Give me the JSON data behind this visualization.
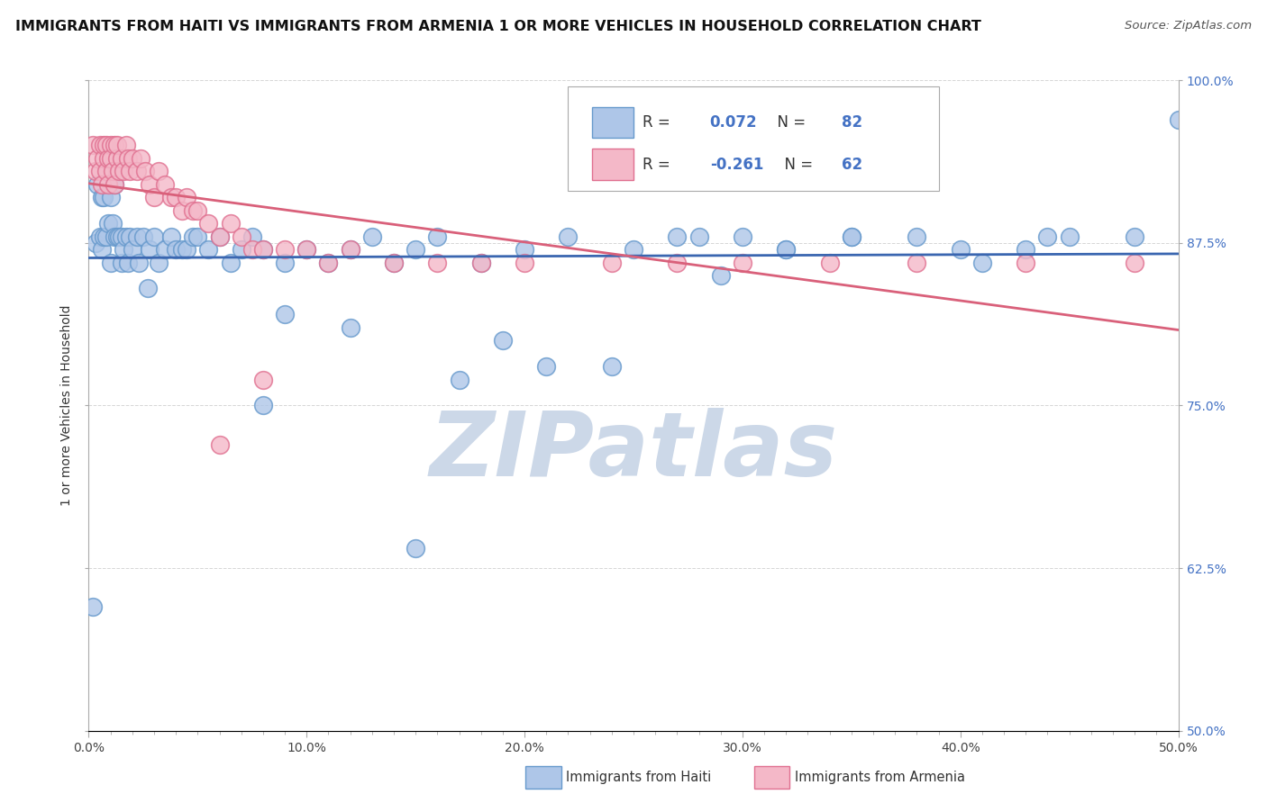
{
  "title": "IMMIGRANTS FROM HAITI VS IMMIGRANTS FROM ARMENIA 1 OR MORE VEHICLES IN HOUSEHOLD CORRELATION CHART",
  "source": "Source: ZipAtlas.com",
  "xlabel_ticks": [
    "0.0%",
    "",
    "",
    "",
    "",
    "",
    "",
    "",
    "",
    "",
    "10.0%",
    "",
    "",
    "",
    "",
    "",
    "",
    "",
    "",
    "",
    "20.0%",
    "",
    "",
    "",
    "",
    "",
    "",
    "",
    "",
    "",
    "30.0%",
    "",
    "",
    "",
    "",
    "",
    "",
    "",
    "",
    "",
    "40.0%",
    "",
    "",
    "",
    "",
    "",
    "",
    "",
    "",
    "",
    "50.0%"
  ],
  "ylabel": "1 or more Vehicles in Household",
  "ylabel_ticks": [
    "50.0%",
    "62.5%",
    "75.0%",
    "87.5%",
    "100.0%"
  ],
  "ylabel_vals": [
    0.5,
    0.625,
    0.75,
    0.875,
    1.0
  ],
  "xlim": [
    0.0,
    0.5
  ],
  "ylim": [
    0.5,
    1.0
  ],
  "haiti_color": "#aec6e8",
  "haiti_edge_color": "#6699cc",
  "armenia_color": "#f4b8c8",
  "armenia_edge_color": "#e07090",
  "haiti_R": 0.072,
  "haiti_N": 82,
  "armenia_R": -0.261,
  "armenia_N": 62,
  "haiti_line_color": "#3a66b0",
  "armenia_line_color": "#d9607a",
  "watermark": "ZIPatlas",
  "watermark_color": "#ccd8e8",
  "haiti_x": [
    0.002,
    0.003,
    0.004,
    0.005,
    0.006,
    0.006,
    0.007,
    0.007,
    0.008,
    0.009,
    0.009,
    0.01,
    0.01,
    0.011,
    0.012,
    0.012,
    0.013,
    0.013,
    0.014,
    0.015,
    0.015,
    0.016,
    0.017,
    0.018,
    0.019,
    0.02,
    0.022,
    0.023,
    0.025,
    0.027,
    0.028,
    0.03,
    0.032,
    0.035,
    0.038,
    0.04,
    0.043,
    0.045,
    0.048,
    0.05,
    0.055,
    0.06,
    0.065,
    0.07,
    0.075,
    0.08,
    0.09,
    0.1,
    0.11,
    0.12,
    0.13,
    0.14,
    0.15,
    0.16,
    0.18,
    0.2,
    0.22,
    0.25,
    0.27,
    0.3,
    0.32,
    0.35,
    0.38,
    0.4,
    0.43,
    0.45,
    0.48,
    0.5,
    0.21,
    0.17,
    0.08,
    0.09,
    0.12,
    0.28,
    0.35,
    0.41,
    0.24,
    0.19,
    0.29,
    0.32,
    0.15,
    0.44
  ],
  "haiti_y": [
    0.595,
    0.875,
    0.92,
    0.88,
    0.91,
    0.87,
    0.88,
    0.91,
    0.88,
    0.89,
    0.93,
    0.86,
    0.91,
    0.89,
    0.88,
    0.92,
    0.88,
    0.93,
    0.88,
    0.88,
    0.86,
    0.87,
    0.88,
    0.86,
    0.88,
    0.87,
    0.88,
    0.86,
    0.88,
    0.84,
    0.87,
    0.88,
    0.86,
    0.87,
    0.88,
    0.87,
    0.87,
    0.87,
    0.88,
    0.88,
    0.87,
    0.88,
    0.86,
    0.87,
    0.88,
    0.87,
    0.86,
    0.87,
    0.86,
    0.87,
    0.88,
    0.86,
    0.87,
    0.88,
    0.86,
    0.87,
    0.88,
    0.87,
    0.88,
    0.88,
    0.87,
    0.88,
    0.88,
    0.87,
    0.87,
    0.88,
    0.88,
    0.97,
    0.78,
    0.77,
    0.75,
    0.82,
    0.81,
    0.88,
    0.88,
    0.86,
    0.78,
    0.8,
    0.85,
    0.87,
    0.64,
    0.88
  ],
  "armenia_x": [
    0.002,
    0.003,
    0.004,
    0.005,
    0.005,
    0.006,
    0.007,
    0.007,
    0.008,
    0.008,
    0.009,
    0.009,
    0.01,
    0.01,
    0.011,
    0.012,
    0.012,
    0.013,
    0.013,
    0.014,
    0.015,
    0.016,
    0.017,
    0.018,
    0.019,
    0.02,
    0.022,
    0.024,
    0.026,
    0.028,
    0.03,
    0.032,
    0.035,
    0.038,
    0.04,
    0.043,
    0.045,
    0.048,
    0.05,
    0.055,
    0.06,
    0.065,
    0.07,
    0.075,
    0.08,
    0.09,
    0.1,
    0.11,
    0.12,
    0.14,
    0.16,
    0.18,
    0.2,
    0.24,
    0.27,
    0.3,
    0.34,
    0.38,
    0.43,
    0.48,
    0.06,
    0.08
  ],
  "armenia_y": [
    0.95,
    0.93,
    0.94,
    0.93,
    0.95,
    0.92,
    0.94,
    0.95,
    0.93,
    0.95,
    0.94,
    0.92,
    0.95,
    0.94,
    0.93,
    0.95,
    0.92,
    0.94,
    0.95,
    0.93,
    0.94,
    0.93,
    0.95,
    0.94,
    0.93,
    0.94,
    0.93,
    0.94,
    0.93,
    0.92,
    0.91,
    0.93,
    0.92,
    0.91,
    0.91,
    0.9,
    0.91,
    0.9,
    0.9,
    0.89,
    0.88,
    0.89,
    0.88,
    0.87,
    0.87,
    0.87,
    0.87,
    0.86,
    0.87,
    0.86,
    0.86,
    0.86,
    0.86,
    0.86,
    0.86,
    0.86,
    0.86,
    0.86,
    0.86,
    0.86,
    0.72,
    0.77
  ]
}
